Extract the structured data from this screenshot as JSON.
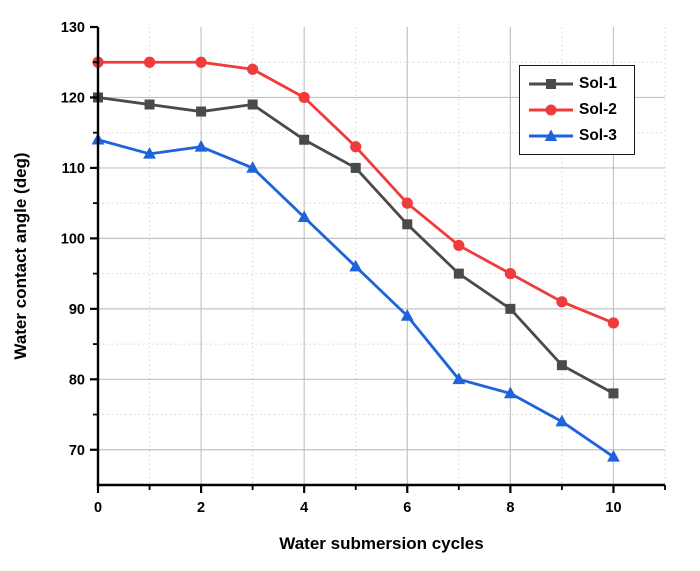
{
  "chart_data": {
    "type": "line",
    "title": "",
    "xlabel": "Water submersion cycles",
    "ylabel": "Water contact angle (deg)",
    "x": [
      0,
      1,
      2,
      3,
      4,
      5,
      6,
      7,
      8,
      9,
      10
    ],
    "series": [
      {
        "name": "Sol-1",
        "marker": "square",
        "color": "#4A4A4A",
        "values": [
          120,
          119,
          118,
          119,
          114,
          110,
          102,
          95,
          90,
          82,
          78
        ]
      },
      {
        "name": "Sol-2",
        "marker": "circle",
        "color": "#EF3B3B",
        "values": [
          125,
          125,
          125,
          124,
          120,
          113,
          105,
          99,
          95,
          91,
          88
        ]
      },
      {
        "name": "Sol-3",
        "marker": "triangle",
        "color": "#1E63DC",
        "values": [
          114,
          112,
          113,
          110,
          103,
          96,
          89,
          80,
          78,
          74,
          69
        ]
      }
    ],
    "xlim": [
      0,
      11
    ],
    "ylim": [
      65,
      130
    ],
    "x_major_ticks": [
      0,
      2,
      4,
      6,
      8,
      10
    ],
    "x_minor_ticks": [
      1,
      3,
      5,
      7,
      9,
      11
    ],
    "y_major_ticks": [
      70,
      80,
      90,
      100,
      110,
      120,
      130
    ],
    "y_minor_ticks": [
      75,
      85,
      95,
      105,
      115,
      125
    ],
    "grid": true,
    "legend_position": "top-right",
    "axis_color": "#000000",
    "major_grid_color": "#C3C3C3",
    "minor_grid_color": "#D4D4D4",
    "tick_label_color": "#000000"
  }
}
